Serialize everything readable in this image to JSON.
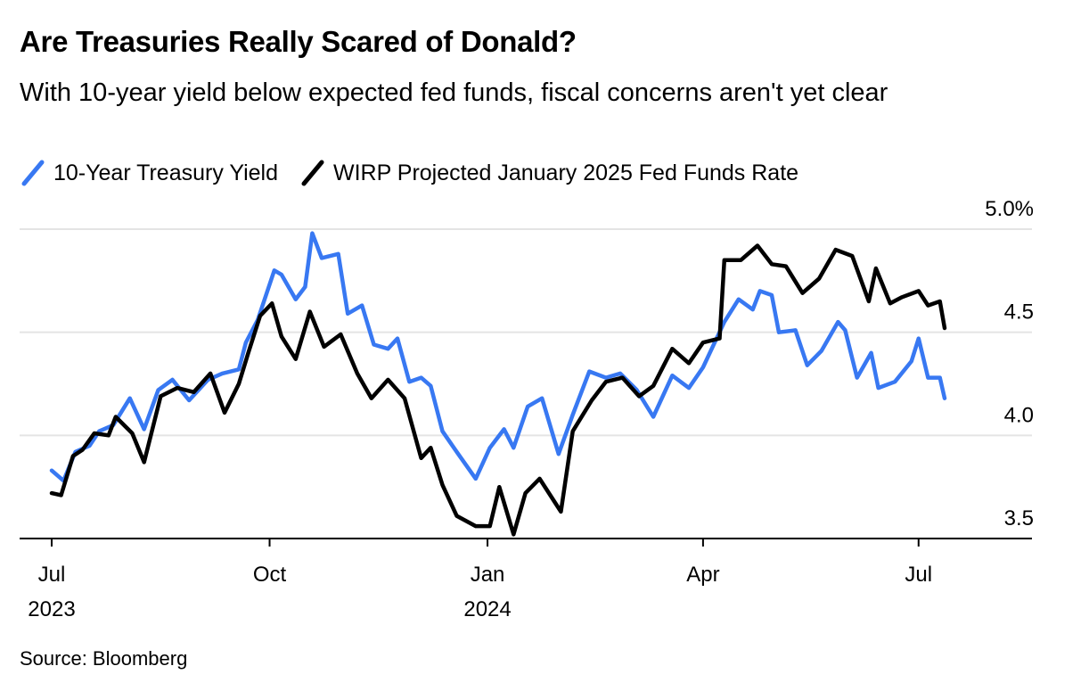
{
  "title": "Are Treasuries Really Scared of Donald?",
  "subtitle": "With 10-year yield below expected fed funds, fiscal concerns aren't yet clear",
  "legend": {
    "series_a": "10-Year Treasury Yield",
    "series_b": "WIRP Projected January 2025 Fed Funds Rate"
  },
  "source": "Source: Bloomberg",
  "colors": {
    "series_a": "#3878f2",
    "series_b": "#000000",
    "grid": "#e4e4e4",
    "axis": "#000000"
  },
  "chart_data": {
    "type": "line",
    "y_ticks": [
      {
        "value": 5.0,
        "label": "5.0%"
      },
      {
        "value": 4.5,
        "label": "4.5"
      },
      {
        "value": 4.0,
        "label": "4.0"
      },
      {
        "value": 3.5,
        "label": "3.5"
      }
    ],
    "ylim": [
      3.5,
      5.0
    ],
    "y_axis_side": "right",
    "xlim": [
      "2023-06-30",
      "2024-07-31"
    ],
    "x_ticks": [
      {
        "date": "2023-07-01",
        "label": "Jul",
        "sublabel": "2023"
      },
      {
        "date": "2023-10-01",
        "label": "Oct",
        "sublabel": ""
      },
      {
        "date": "2024-01-01",
        "label": "Jan",
        "sublabel": "2024"
      },
      {
        "date": "2024-04-01",
        "label": "Apr",
        "sublabel": ""
      },
      {
        "date": "2024-07-01",
        "label": "Jul",
        "sublabel": ""
      }
    ],
    "legend_position": "top-left",
    "grid": true,
    "series": [
      {
        "name": "10-Year Treasury Yield",
        "color": "#3878f2",
        "points": [
          [
            "2023-07-01",
            3.83
          ],
          [
            "2023-07-06",
            3.78
          ],
          [
            "2023-07-11",
            3.92
          ],
          [
            "2023-07-17",
            3.95
          ],
          [
            "2023-07-21",
            4.02
          ],
          [
            "2023-07-27",
            4.05
          ],
          [
            "2023-08-03",
            4.18
          ],
          [
            "2023-08-09",
            4.03
          ],
          [
            "2023-08-15",
            4.22
          ],
          [
            "2023-08-21",
            4.27
          ],
          [
            "2023-08-28",
            4.17
          ],
          [
            "2023-09-05",
            4.27
          ],
          [
            "2023-09-11",
            4.3
          ],
          [
            "2023-09-18",
            4.32
          ],
          [
            "2023-09-21",
            4.45
          ],
          [
            "2023-09-26",
            4.56
          ],
          [
            "2023-10-03",
            4.8
          ],
          [
            "2023-10-06",
            4.78
          ],
          [
            "2023-10-12",
            4.66
          ],
          [
            "2023-10-16",
            4.72
          ],
          [
            "2023-10-19",
            4.98
          ],
          [
            "2023-10-23",
            4.86
          ],
          [
            "2023-10-30",
            4.88
          ],
          [
            "2023-11-03",
            4.59
          ],
          [
            "2023-11-09",
            4.63
          ],
          [
            "2023-11-14",
            4.44
          ],
          [
            "2023-11-20",
            4.42
          ],
          [
            "2023-11-24",
            4.47
          ],
          [
            "2023-11-29",
            4.26
          ],
          [
            "2023-12-04",
            4.28
          ],
          [
            "2023-12-08",
            4.24
          ],
          [
            "2023-12-13",
            4.02
          ],
          [
            "2023-12-19",
            3.92
          ],
          [
            "2023-12-27",
            3.79
          ],
          [
            "2024-01-02",
            3.94
          ],
          [
            "2024-01-08",
            4.03
          ],
          [
            "2024-01-12",
            3.94
          ],
          [
            "2024-01-18",
            4.14
          ],
          [
            "2024-01-24",
            4.18
          ],
          [
            "2024-01-31",
            3.91
          ],
          [
            "2024-02-06",
            4.1
          ],
          [
            "2024-02-13",
            4.31
          ],
          [
            "2024-02-20",
            4.28
          ],
          [
            "2024-02-26",
            4.3
          ],
          [
            "2024-03-04",
            4.22
          ],
          [
            "2024-03-11",
            4.09
          ],
          [
            "2024-03-19",
            4.29
          ],
          [
            "2024-03-26",
            4.23
          ],
          [
            "2024-04-01",
            4.33
          ],
          [
            "2024-04-10",
            4.55
          ],
          [
            "2024-04-16",
            4.66
          ],
          [
            "2024-04-22",
            4.61
          ],
          [
            "2024-04-25",
            4.7
          ],
          [
            "2024-04-30",
            4.68
          ],
          [
            "2024-05-03",
            4.5
          ],
          [
            "2024-05-10",
            4.51
          ],
          [
            "2024-05-15",
            4.34
          ],
          [
            "2024-05-21",
            4.41
          ],
          [
            "2024-05-28",
            4.55
          ],
          [
            "2024-05-31",
            4.51
          ],
          [
            "2024-06-05",
            4.28
          ],
          [
            "2024-06-11",
            4.4
          ],
          [
            "2024-06-14",
            4.23
          ],
          [
            "2024-06-21",
            4.26
          ],
          [
            "2024-06-28",
            4.36
          ],
          [
            "2024-07-01",
            4.47
          ],
          [
            "2024-07-05",
            4.28
          ],
          [
            "2024-07-10",
            4.28
          ],
          [
            "2024-07-12",
            4.18
          ]
        ]
      },
      {
        "name": "WIRP Projected January 2025 Fed Funds Rate",
        "color": "#000000",
        "points": [
          [
            "2023-07-01",
            3.72
          ],
          [
            "2023-07-05",
            3.71
          ],
          [
            "2023-07-10",
            3.9
          ],
          [
            "2023-07-14",
            3.93
          ],
          [
            "2023-07-19",
            4.01
          ],
          [
            "2023-07-25",
            4.0
          ],
          [
            "2023-07-28",
            4.09
          ],
          [
            "2023-08-04",
            4.01
          ],
          [
            "2023-08-09",
            3.87
          ],
          [
            "2023-08-16",
            4.19
          ],
          [
            "2023-08-23",
            4.23
          ],
          [
            "2023-08-30",
            4.21
          ],
          [
            "2023-09-06",
            4.3
          ],
          [
            "2023-09-12",
            4.11
          ],
          [
            "2023-09-18",
            4.25
          ],
          [
            "2023-09-22",
            4.4
          ],
          [
            "2023-09-27",
            4.58
          ],
          [
            "2023-10-02",
            4.64
          ],
          [
            "2023-10-06",
            4.48
          ],
          [
            "2023-10-12",
            4.37
          ],
          [
            "2023-10-18",
            4.6
          ],
          [
            "2023-10-24",
            4.43
          ],
          [
            "2023-10-31",
            4.49
          ],
          [
            "2023-11-07",
            4.3
          ],
          [
            "2023-11-13",
            4.18
          ],
          [
            "2023-11-20",
            4.27
          ],
          [
            "2023-11-27",
            4.18
          ],
          [
            "2023-12-04",
            3.89
          ],
          [
            "2023-12-08",
            3.94
          ],
          [
            "2023-12-13",
            3.76
          ],
          [
            "2023-12-19",
            3.61
          ],
          [
            "2023-12-27",
            3.56
          ],
          [
            "2024-01-02",
            3.56
          ],
          [
            "2024-01-06",
            3.75
          ],
          [
            "2024-01-12",
            3.52
          ],
          [
            "2024-01-17",
            3.72
          ],
          [
            "2024-01-23",
            3.79
          ],
          [
            "2024-02-01",
            3.63
          ],
          [
            "2024-02-06",
            4.02
          ],
          [
            "2024-02-14",
            4.17
          ],
          [
            "2024-02-20",
            4.26
          ],
          [
            "2024-02-27",
            4.28
          ],
          [
            "2024-03-05",
            4.19
          ],
          [
            "2024-03-11",
            4.24
          ],
          [
            "2024-03-19",
            4.42
          ],
          [
            "2024-03-26",
            4.35
          ],
          [
            "2024-04-01",
            4.45
          ],
          [
            "2024-04-08",
            4.47
          ],
          [
            "2024-04-10",
            4.85
          ],
          [
            "2024-04-17",
            4.85
          ],
          [
            "2024-04-24",
            4.92
          ],
          [
            "2024-04-30",
            4.83
          ],
          [
            "2024-05-06",
            4.82
          ],
          [
            "2024-05-13",
            4.69
          ],
          [
            "2024-05-20",
            4.76
          ],
          [
            "2024-05-27",
            4.9
          ],
          [
            "2024-06-03",
            4.87
          ],
          [
            "2024-06-10",
            4.65
          ],
          [
            "2024-06-13",
            4.81
          ],
          [
            "2024-06-19",
            4.64
          ],
          [
            "2024-06-24",
            4.67
          ],
          [
            "2024-07-01",
            4.7
          ],
          [
            "2024-07-05",
            4.63
          ],
          [
            "2024-07-10",
            4.65
          ],
          [
            "2024-07-12",
            4.52
          ]
        ]
      }
    ]
  }
}
